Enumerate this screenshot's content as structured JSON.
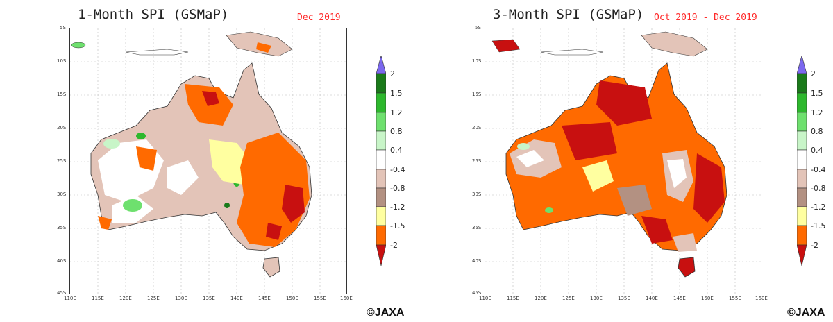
{
  "panels": [
    {
      "title": "1-Month SPI (GSMaP)",
      "period": "Dec 2019",
      "copyright": "©JAXA"
    },
    {
      "title": "3-Month SPI (GSMaP)",
      "period": "Oct 2019 - Dec 2019",
      "copyright": "©JAXA"
    }
  ],
  "lat_labels": [
    "5S",
    "10S",
    "15S",
    "20S",
    "25S",
    "30S",
    "35S",
    "40S",
    "45S"
  ],
  "lon_labels": [
    "110E",
    "115E",
    "120E",
    "125E",
    "130E",
    "135E",
    "140E",
    "145E",
    "150E",
    "155E",
    "160E"
  ],
  "legend": {
    "labels": [
      "2",
      "1.5",
      "1.2",
      "0.8",
      "0.4",
      "-0.4",
      "-0.8",
      "-1.2",
      "-1.5",
      "-2"
    ],
    "colors": [
      "#7b68ee",
      "#1a7a1a",
      "#2db82d",
      "#6ee06e",
      "#c8f5c8",
      "#ffffff",
      "#e3c4b8",
      "#b39182",
      "#ffffa0",
      "#ff6a00",
      "#c81010"
    ]
  },
  "colors": {
    "title_text": "#222222",
    "period_text": "#ff2a2a",
    "coastline": "#333333",
    "grid": "#bbbbbb"
  }
}
